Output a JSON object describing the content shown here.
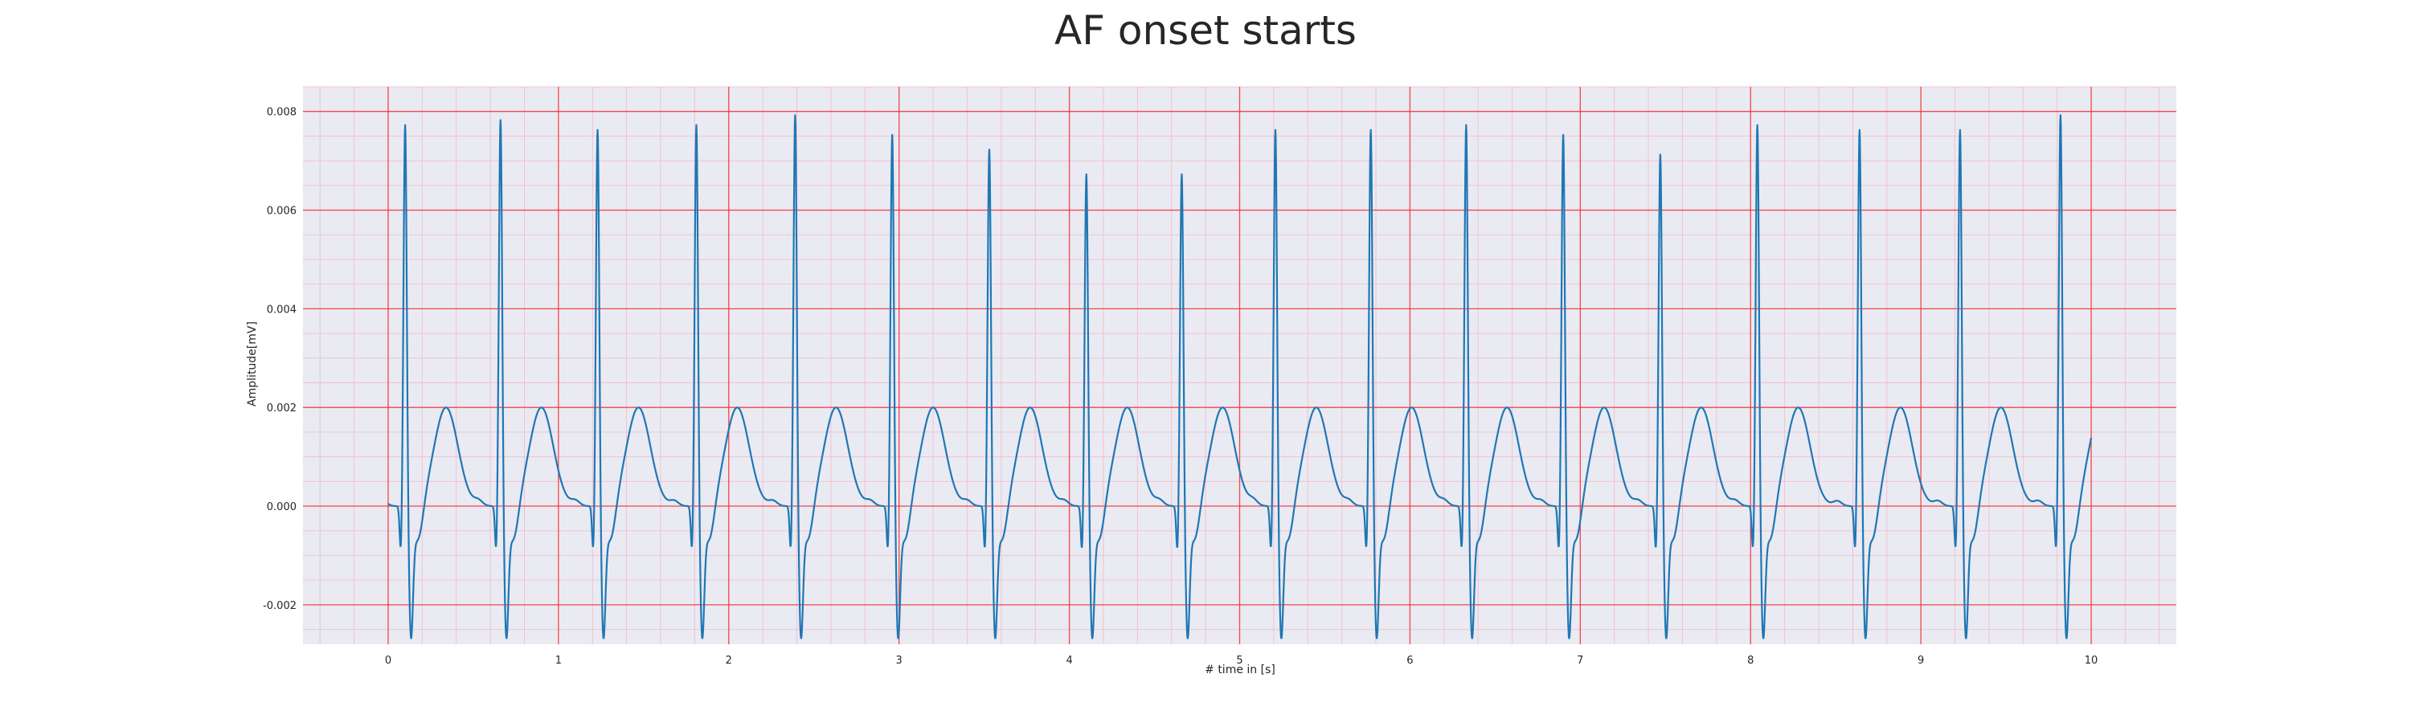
{
  "chart_data": {
    "type": "line",
    "title": "AF onset starts",
    "xlabel": "# time in [s]",
    "ylabel": "Amplitude[mV]",
    "xlim": [
      -0.5,
      10.5
    ],
    "ylim": [
      -0.0028,
      0.0085
    ],
    "xticks": [
      "0",
      "1",
      "2",
      "3",
      "4",
      "5",
      "6",
      "7",
      "8",
      "9",
      "10"
    ],
    "yticks": [
      "0.008",
      "0.006",
      "0.004",
      "0.002",
      "0.000",
      "-0.002"
    ],
    "grid": true,
    "colors": {
      "line": "#1f77b4",
      "plot_bg": "#eaeaf2",
      "major_grid": "#f03232",
      "minor_grid": "#f5a3b8"
    },
    "beats": [
      {
        "t": 0.1,
        "peak": 0.0078
      },
      {
        "t": 0.66,
        "peak": 0.0079
      },
      {
        "t": 1.23,
        "peak": 0.0077
      },
      {
        "t": 1.81,
        "peak": 0.0078
      },
      {
        "t": 2.39,
        "peak": 0.008
      },
      {
        "t": 2.96,
        "peak": 0.0076
      },
      {
        "t": 3.53,
        "peak": 0.0073
      },
      {
        "t": 4.1,
        "peak": 0.0068
      },
      {
        "t": 4.66,
        "peak": 0.0068
      },
      {
        "t": 5.21,
        "peak": 0.0077
      },
      {
        "t": 5.77,
        "peak": 0.0077
      },
      {
        "t": 6.33,
        "peak": 0.0078
      },
      {
        "t": 6.9,
        "peak": 0.0076
      },
      {
        "t": 7.47,
        "peak": 0.0072
      },
      {
        "t": 8.04,
        "peak": 0.0078
      },
      {
        "t": 8.64,
        "peak": 0.0077
      },
      {
        "t": 9.23,
        "peak": 0.0077
      },
      {
        "t": 9.82,
        "peak": 0.008
      }
    ],
    "series": [
      {
        "x_start": 0.0,
        "x_end": 10.0
      }
    ]
  }
}
